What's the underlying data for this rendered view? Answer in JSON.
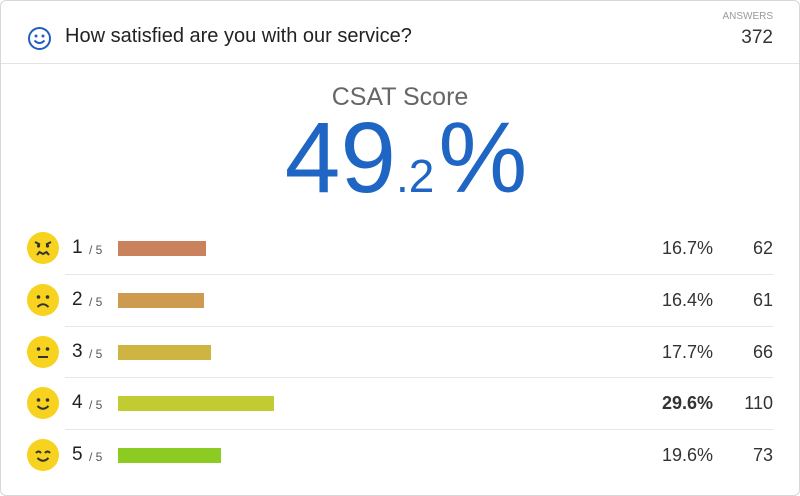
{
  "header": {
    "title": "How satisfied are you with our service?",
    "answers_label": "ANSWERS",
    "answers": 372
  },
  "score": {
    "label": "CSAT Score",
    "whole": "49",
    "fraction": ".2",
    "symbol": "%"
  },
  "rows": [
    {
      "rating": "1",
      "scale": "/ 5",
      "percent": 16.7,
      "percent_label": "16.7%",
      "count": 62,
      "color": "#c9825c"
    },
    {
      "rating": "2",
      "scale": "/ 5",
      "percent": 16.4,
      "percent_label": "16.4%",
      "count": 61,
      "color": "#cd9a50"
    },
    {
      "rating": "3",
      "scale": "/ 5",
      "percent": 17.7,
      "percent_label": "17.7%",
      "count": 66,
      "color": "#cdb443"
    },
    {
      "rating": "4",
      "scale": "/ 5",
      "percent": 29.6,
      "percent_label": "29.6%",
      "count": 110,
      "color": "#c0cc31"
    },
    {
      "rating": "5",
      "scale": "/ 5",
      "percent": 19.6,
      "percent_label": "19.6%",
      "count": 73,
      "color": "#8ccc22"
    }
  ]
}
